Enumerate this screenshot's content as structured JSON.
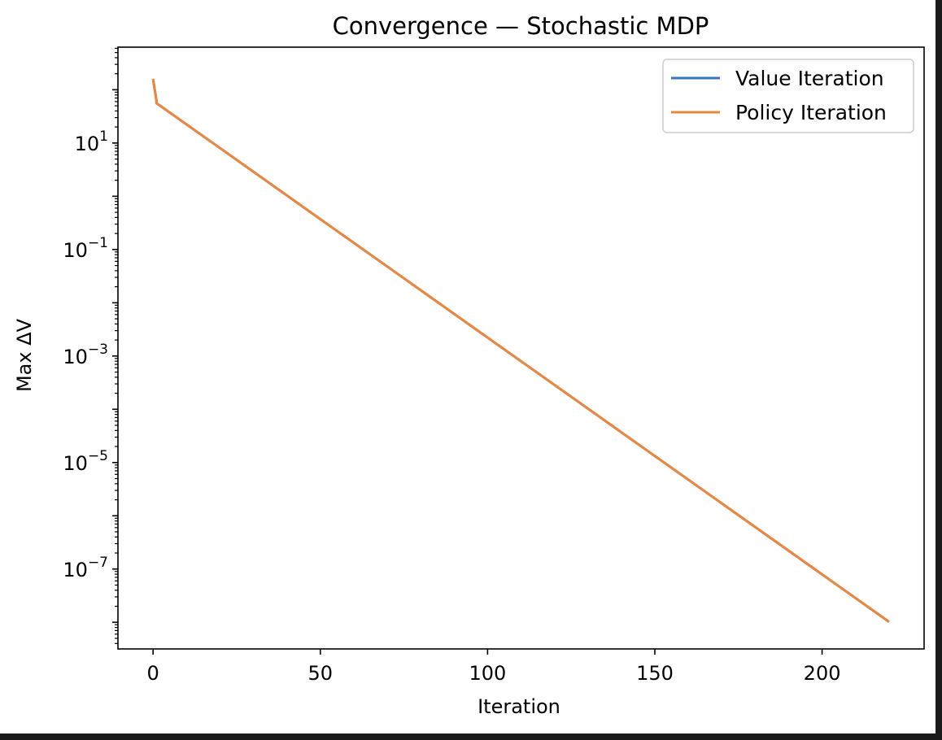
{
  "chart_data": {
    "type": "line",
    "title": "Convergence — Stochastic MDP",
    "xlabel": "Iteration",
    "ylabel": "Max ΔV",
    "yscale": "log",
    "xlim": [
      -10.5,
      230.5
    ],
    "ylim_exp": [
      -8.5,
      2.8
    ],
    "x_ticks": [
      0,
      50,
      100,
      150,
      200
    ],
    "y_ticks": [
      {
        "base": "10",
        "exp": "1",
        "value_exp": 1
      },
      {
        "base": "10",
        "exp": "−1",
        "value_exp": -1
      },
      {
        "base": "10",
        "exp": "−3",
        "value_exp": -3
      },
      {
        "base": "10",
        "exp": "−5",
        "value_exp": -5
      },
      {
        "base": "10",
        "exp": "−7",
        "value_exp": -7
      }
    ],
    "legend_position": "upper-right",
    "series": [
      {
        "name": "Value Iteration",
        "color": "#3a75b9",
        "points": [
          [
            0,
            2.2
          ],
          [
            1,
            1.8
          ],
          [
            1,
            1.75
          ],
          [
            220,
            -7.99
          ]
        ]
      },
      {
        "name": "Policy Iteration",
        "color": "#e8873f",
        "points": [
          [
            0,
            2.2
          ],
          [
            1,
            1.8
          ],
          [
            1,
            1.75
          ],
          [
            220,
            -7.99
          ]
        ]
      }
    ]
  }
}
